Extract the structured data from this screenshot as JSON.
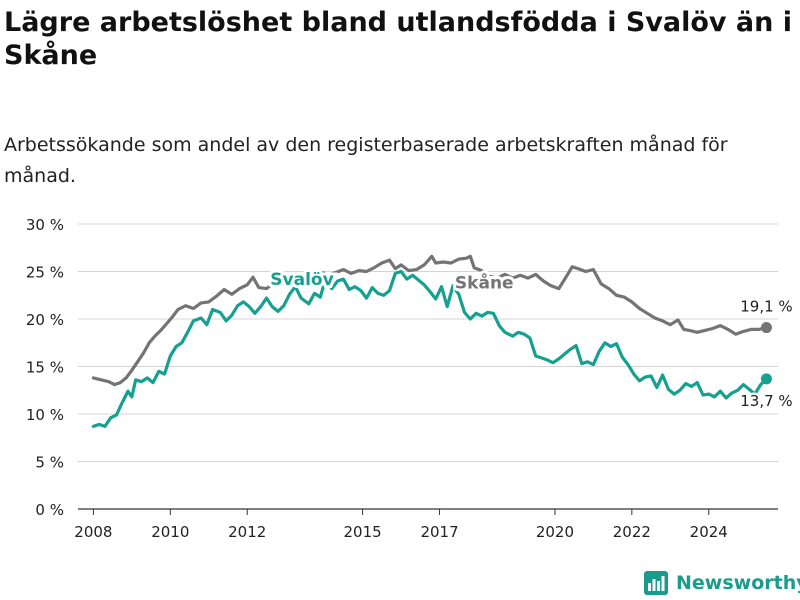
{
  "title": "Lägre arbetslöshet bland utlandsfödda i Svalöv än i Skåne",
  "subtitle": "Arbetssökande som andel av den registerbaserade arbetskraften månad för månad.",
  "brand": "Newsworthy",
  "colors": {
    "svalov": "#16a08f",
    "skane": "#747474",
    "grid": "#d4d4d4",
    "axis": "#333333",
    "text": "#222222"
  },
  "chart_data": {
    "type": "line",
    "title": "Lägre arbetslöshet bland utlandsfödda i Svalöv än i Skåne",
    "subtitle": "Arbetssökande som andel av den registerbaserade arbetskraften månad för månad.",
    "xlabel": "",
    "ylabel": "",
    "ylim": [
      0,
      30
    ],
    "xlim": [
      2007.6,
      2025.8
    ],
    "y_ticks": [
      0,
      5,
      10,
      15,
      20,
      25,
      30
    ],
    "y_tick_labels": [
      "0 %",
      "5 %",
      "10 %",
      "15 %",
      "20 %",
      "25 %",
      "30 %"
    ],
    "x_ticks": [
      2008,
      2010,
      2012,
      2015,
      2017,
      2020,
      2022,
      2024
    ],
    "x_tick_labels": [
      "2008",
      "2010",
      "2012",
      "2015",
      "2017",
      "2020",
      "2022",
      "2024"
    ],
    "grid": "horizontal",
    "legend": "inline labels",
    "series": [
      {
        "name": "Skåne",
        "color": "#747474",
        "end_label": "19,1 %",
        "label_x": 2017.4,
        "label_y": 23.2,
        "points": [
          [
            2008.0,
            13.8
          ],
          [
            2008.2,
            13.6
          ],
          [
            2008.4,
            13.4
          ],
          [
            2008.55,
            13.1
          ],
          [
            2008.7,
            13.3
          ],
          [
            2008.85,
            13.8
          ],
          [
            2009.0,
            14.6
          ],
          [
            2009.15,
            15.5
          ],
          [
            2009.3,
            16.4
          ],
          [
            2009.45,
            17.5
          ],
          [
            2009.6,
            18.2
          ],
          [
            2009.75,
            18.8
          ],
          [
            2009.9,
            19.5
          ],
          [
            2010.05,
            20.2
          ],
          [
            2010.2,
            21.0
          ],
          [
            2010.4,
            21.4
          ],
          [
            2010.6,
            21.1
          ],
          [
            2010.8,
            21.7
          ],
          [
            2011.0,
            21.8
          ],
          [
            2011.2,
            22.4
          ],
          [
            2011.4,
            23.1
          ],
          [
            2011.6,
            22.6
          ],
          [
            2011.8,
            23.2
          ],
          [
            2012.0,
            23.6
          ],
          [
            2012.15,
            24.4
          ],
          [
            2012.3,
            23.3
          ],
          [
            2012.5,
            23.2
          ],
          [
            2012.7,
            23.8
          ],
          [
            2012.9,
            24.3
          ],
          [
            2013.1,
            24.4
          ],
          [
            2013.3,
            24.6
          ],
          [
            2013.5,
            24.4
          ],
          [
            2013.7,
            24.8
          ],
          [
            2013.9,
            25.0
          ],
          [
            2014.1,
            24.6
          ],
          [
            2014.3,
            24.9
          ],
          [
            2014.5,
            25.2
          ],
          [
            2014.7,
            24.8
          ],
          [
            2014.9,
            25.1
          ],
          [
            2015.1,
            25.0
          ],
          [
            2015.3,
            25.4
          ],
          [
            2015.5,
            25.9
          ],
          [
            2015.7,
            26.2
          ],
          [
            2015.85,
            25.3
          ],
          [
            2016.0,
            25.7
          ],
          [
            2016.2,
            25.1
          ],
          [
            2016.4,
            25.2
          ],
          [
            2016.6,
            25.7
          ],
          [
            2016.8,
            26.6
          ],
          [
            2016.9,
            25.9
          ],
          [
            2017.1,
            26.0
          ],
          [
            2017.3,
            25.9
          ],
          [
            2017.5,
            26.3
          ],
          [
            2017.7,
            26.4
          ],
          [
            2017.8,
            26.6
          ],
          [
            2017.9,
            25.4
          ],
          [
            2018.1,
            25.1
          ],
          [
            2018.3,
            24.5
          ],
          [
            2018.5,
            24.3
          ],
          [
            2018.7,
            24.7
          ],
          [
            2018.9,
            24.3
          ],
          [
            2019.1,
            24.6
          ],
          [
            2019.3,
            24.3
          ],
          [
            2019.5,
            24.7
          ],
          [
            2019.7,
            24.0
          ],
          [
            2019.9,
            23.5
          ],
          [
            2020.1,
            23.2
          ],
          [
            2020.3,
            24.5
          ],
          [
            2020.45,
            25.5
          ],
          [
            2020.6,
            25.3
          ],
          [
            2020.8,
            25.0
          ],
          [
            2021.0,
            25.2
          ],
          [
            2021.2,
            23.7
          ],
          [
            2021.4,
            23.2
          ],
          [
            2021.6,
            22.5
          ],
          [
            2021.8,
            22.3
          ],
          [
            2022.0,
            21.8
          ],
          [
            2022.2,
            21.1
          ],
          [
            2022.4,
            20.6
          ],
          [
            2022.6,
            20.1
          ],
          [
            2022.8,
            19.8
          ],
          [
            2023.0,
            19.4
          ],
          [
            2023.2,
            19.9
          ],
          [
            2023.35,
            18.9
          ],
          [
            2023.5,
            18.8
          ],
          [
            2023.7,
            18.6
          ],
          [
            2023.9,
            18.8
          ],
          [
            2024.1,
            19.0
          ],
          [
            2024.3,
            19.3
          ],
          [
            2024.5,
            18.9
          ],
          [
            2024.7,
            18.4
          ],
          [
            2024.9,
            18.7
          ],
          [
            2025.1,
            18.9
          ],
          [
            2025.3,
            18.9
          ],
          [
            2025.5,
            19.1
          ]
        ]
      },
      {
        "name": "Svalöv",
        "color": "#16a08f",
        "end_label": "13,7 %",
        "label_x": 2012.6,
        "label_y": 23.6,
        "points": [
          [
            2008.0,
            8.7
          ],
          [
            2008.15,
            8.9
          ],
          [
            2008.3,
            8.7
          ],
          [
            2008.45,
            9.6
          ],
          [
            2008.6,
            9.9
          ],
          [
            2008.75,
            11.2
          ],
          [
            2008.9,
            12.4
          ],
          [
            2009.0,
            11.8
          ],
          [
            2009.1,
            13.6
          ],
          [
            2009.25,
            13.4
          ],
          [
            2009.4,
            13.8
          ],
          [
            2009.55,
            13.3
          ],
          [
            2009.7,
            14.5
          ],
          [
            2009.85,
            14.2
          ],
          [
            2010.0,
            16.1
          ],
          [
            2010.15,
            17.1
          ],
          [
            2010.3,
            17.5
          ],
          [
            2010.45,
            18.6
          ],
          [
            2010.6,
            19.8
          ],
          [
            2010.8,
            20.1
          ],
          [
            2010.95,
            19.4
          ],
          [
            2011.1,
            21.0
          ],
          [
            2011.3,
            20.7
          ],
          [
            2011.45,
            19.8
          ],
          [
            2011.6,
            20.4
          ],
          [
            2011.75,
            21.4
          ],
          [
            2011.9,
            21.8
          ],
          [
            2012.05,
            21.3
          ],
          [
            2012.2,
            20.6
          ],
          [
            2012.35,
            21.3
          ],
          [
            2012.5,
            22.2
          ],
          [
            2012.65,
            21.3
          ],
          [
            2012.8,
            20.8
          ],
          [
            2012.95,
            21.4
          ],
          [
            2013.1,
            22.6
          ],
          [
            2013.25,
            23.4
          ],
          [
            2013.4,
            22.2
          ],
          [
            2013.6,
            21.6
          ],
          [
            2013.75,
            22.7
          ],
          [
            2013.9,
            22.3
          ],
          [
            2014.05,
            24.4
          ],
          [
            2014.2,
            23.2
          ],
          [
            2014.35,
            24.0
          ],
          [
            2014.5,
            24.2
          ],
          [
            2014.65,
            23.1
          ],
          [
            2014.8,
            23.4
          ],
          [
            2014.95,
            23.0
          ],
          [
            2015.1,
            22.2
          ],
          [
            2015.25,
            23.3
          ],
          [
            2015.4,
            22.7
          ],
          [
            2015.55,
            22.5
          ],
          [
            2015.7,
            23.0
          ],
          [
            2015.85,
            24.8
          ],
          [
            2016.0,
            25.0
          ],
          [
            2016.15,
            24.2
          ],
          [
            2016.3,
            24.6
          ],
          [
            2016.45,
            24.1
          ],
          [
            2016.6,
            23.6
          ],
          [
            2016.75,
            22.9
          ],
          [
            2016.9,
            22.1
          ],
          [
            2017.05,
            23.4
          ],
          [
            2017.2,
            21.3
          ],
          [
            2017.35,
            23.5
          ],
          [
            2017.5,
            22.6
          ],
          [
            2017.65,
            20.7
          ],
          [
            2017.8,
            20.0
          ],
          [
            2017.95,
            20.6
          ],
          [
            2018.1,
            20.3
          ],
          [
            2018.25,
            20.7
          ],
          [
            2018.4,
            20.6
          ],
          [
            2018.55,
            19.3
          ],
          [
            2018.7,
            18.6
          ],
          [
            2018.9,
            18.2
          ],
          [
            2019.05,
            18.6
          ],
          [
            2019.2,
            18.4
          ],
          [
            2019.35,
            18.0
          ],
          [
            2019.5,
            16.1
          ],
          [
            2019.65,
            15.9
          ],
          [
            2019.8,
            15.7
          ],
          [
            2019.95,
            15.4
          ],
          [
            2020.1,
            15.8
          ],
          [
            2020.25,
            16.3
          ],
          [
            2020.4,
            16.8
          ],
          [
            2020.55,
            17.2
          ],
          [
            2020.7,
            15.3
          ],
          [
            2020.85,
            15.5
          ],
          [
            2021.0,
            15.2
          ],
          [
            2021.15,
            16.6
          ],
          [
            2021.3,
            17.5
          ],
          [
            2021.45,
            17.1
          ],
          [
            2021.6,
            17.4
          ],
          [
            2021.75,
            16.0
          ],
          [
            2021.9,
            15.2
          ],
          [
            2022.05,
            14.2
          ],
          [
            2022.2,
            13.5
          ],
          [
            2022.35,
            13.9
          ],
          [
            2022.5,
            14.0
          ],
          [
            2022.65,
            12.8
          ],
          [
            2022.8,
            14.1
          ],
          [
            2022.95,
            12.6
          ],
          [
            2023.1,
            12.1
          ],
          [
            2023.25,
            12.5
          ],
          [
            2023.4,
            13.2
          ],
          [
            2023.55,
            12.9
          ],
          [
            2023.7,
            13.3
          ],
          [
            2023.85,
            12.0
          ],
          [
            2024.0,
            12.1
          ],
          [
            2024.15,
            11.8
          ],
          [
            2024.3,
            12.4
          ],
          [
            2024.45,
            11.7
          ],
          [
            2024.6,
            12.2
          ],
          [
            2024.75,
            12.5
          ],
          [
            2024.9,
            13.1
          ],
          [
            2025.05,
            12.6
          ],
          [
            2025.2,
            12.1
          ],
          [
            2025.35,
            13.1
          ],
          [
            2025.5,
            13.7
          ]
        ]
      }
    ]
  }
}
